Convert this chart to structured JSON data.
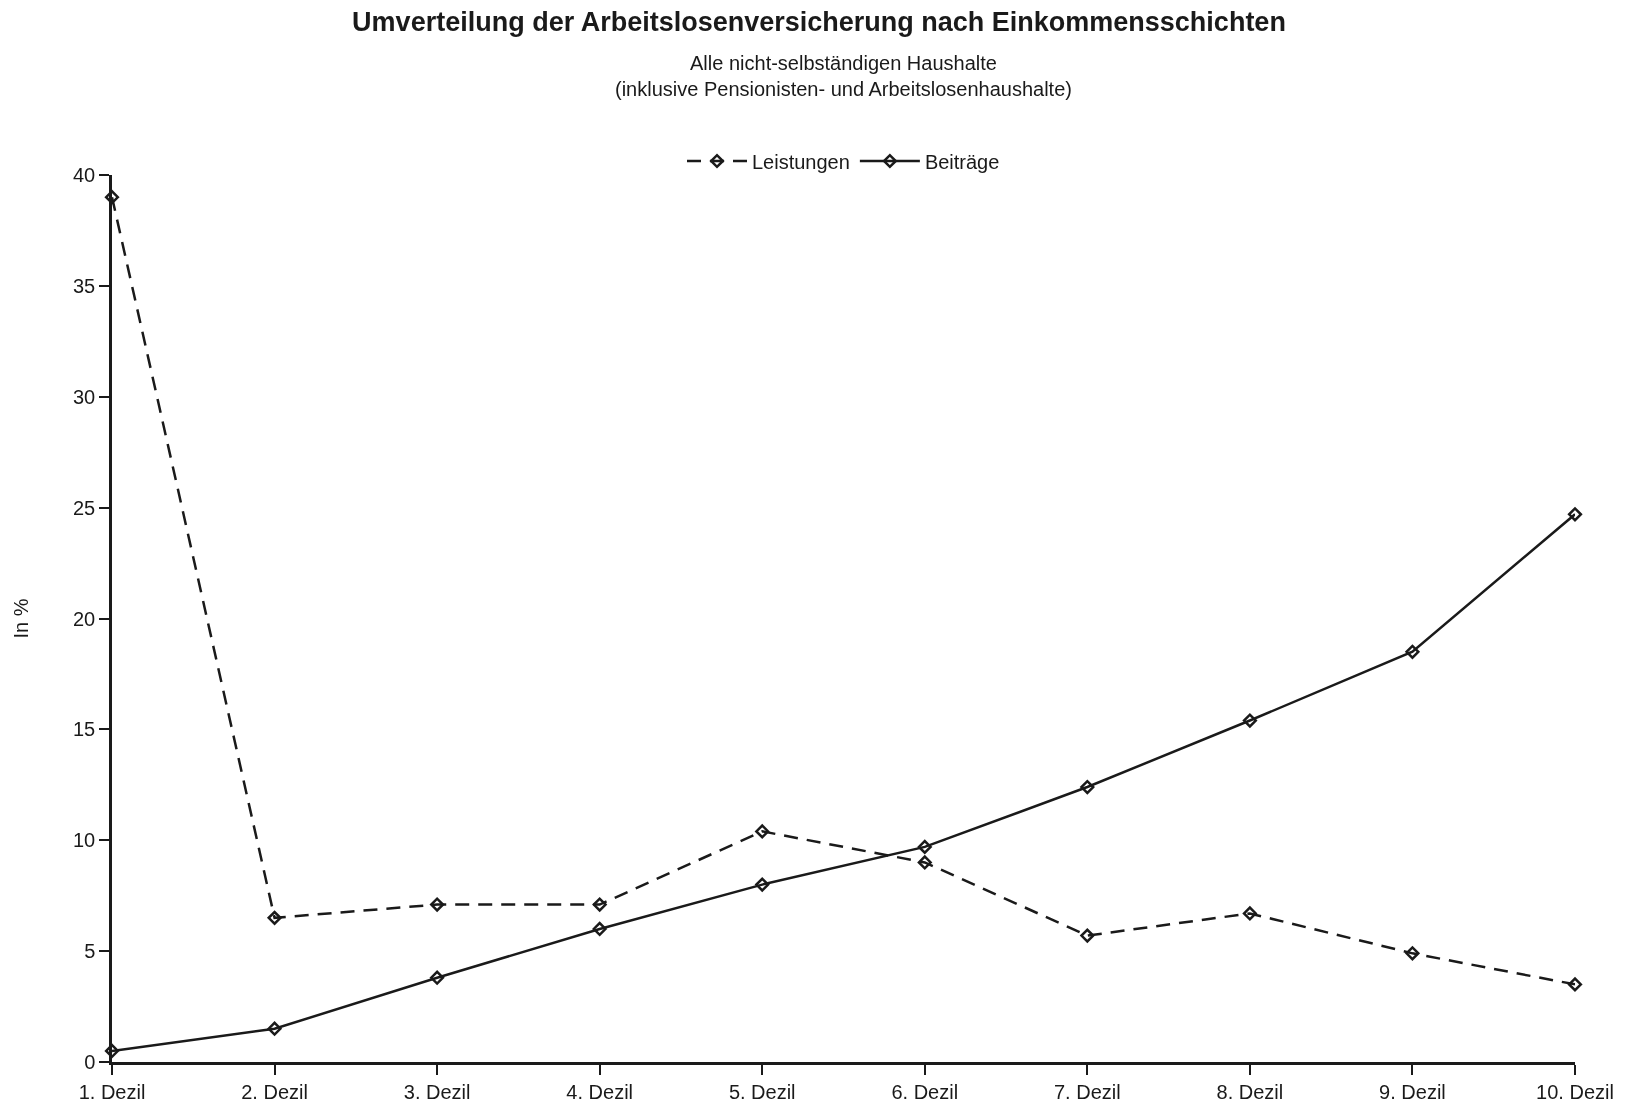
{
  "chart_data": {
    "type": "line",
    "title": "Umverteilung der Arbeitslosenversicherung nach Einkommensschichten",
    "subtitle": "Alle nicht-selbständigen Haushalte\n(inklusive Pensionisten- und Arbeitslosenhaushalte)",
    "ylabel": "In %",
    "categories": [
      "1. Dezil",
      "2. Dezil",
      "3. Dezil",
      "4. Dezil",
      "5. Dezil",
      "6. Dezil",
      "7. Dezil",
      "8. Dezil",
      "9. Dezil",
      "10. Dezil"
    ],
    "series": [
      {
        "name": "Leistungen",
        "color": "#1a1a1a",
        "line_style": "dashed",
        "values": [
          39.0,
          6.5,
          7.1,
          7.1,
          10.4,
          9.0,
          5.7,
          6.7,
          4.9,
          3.5
        ]
      },
      {
        "name": "Beiträge",
        "color": "#1a1a1a",
        "line_style": "solid",
        "values": [
          0.5,
          1.5,
          3.8,
          6.0,
          8.0,
          9.7,
          12.4,
          15.4,
          18.5,
          24.7
        ]
      }
    ],
    "ylim": [
      0,
      40
    ],
    "yticks": [
      0,
      5,
      10,
      15,
      20,
      25,
      30,
      35,
      40
    ],
    "grid": false,
    "legend": "top",
    "marker": "diamond"
  }
}
